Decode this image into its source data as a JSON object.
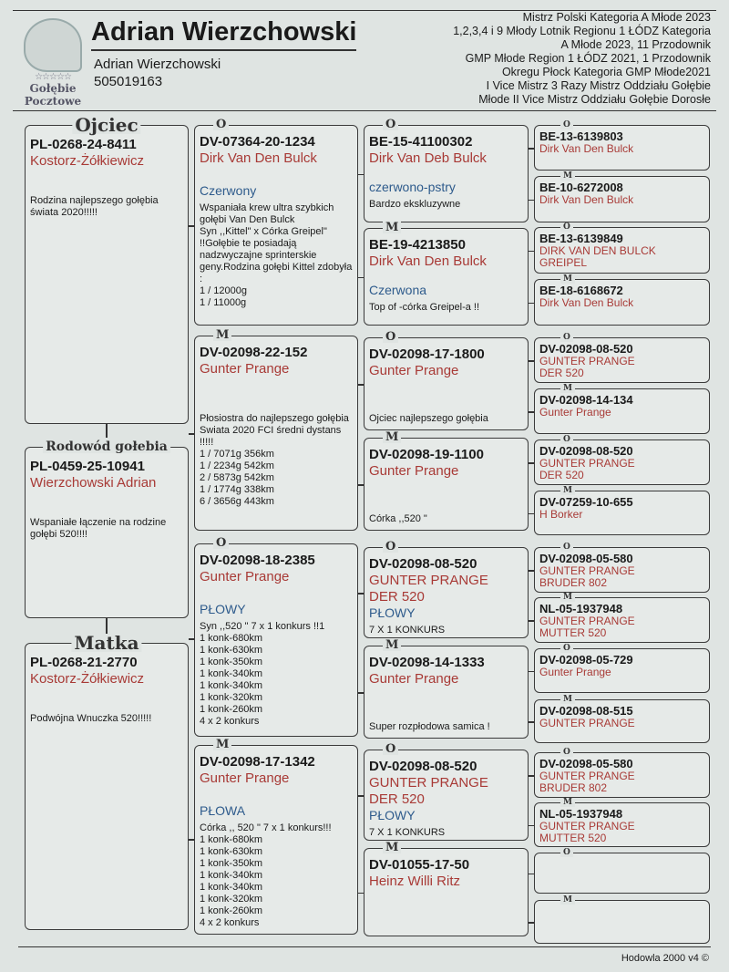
{
  "header": {
    "logo_text": [
      "Gołębie",
      "Pocztowe"
    ],
    "title": "Adrian Wierzchowski",
    "owner_name": "Adrian Wierzchowski",
    "phone": "505019163",
    "achievements": [
      "Mistrz Polski Kategoria A Młode 2023",
      "1,2,3,4 i 9 Młody Lotnik Regionu 1 ŁÓDZ Kategoria",
      "A Młode 2023, 11 Przodownik",
      "GMP Młode Region 1 ŁÓDZ 2021, 1 Przodownik",
      "Okregu Płock Kategoria GMP Młode2021",
      "I Vice Mistrz 3 Razy Mistrz Oddziału Gołębie",
      "Młode II Vice Mistrz Oddziału Gołębie Dorosłe"
    ]
  },
  "generation1": [
    {
      "label": "Ojciec",
      "ring": "PL-0268-24-8411",
      "breeder": "Kostorz-Żółkiewicz",
      "color": "",
      "note": "Rodzina najlepszego gołębia świata 2020!!!!!"
    },
    {
      "label": "Rodowód gołebia",
      "ring": "PL-0459-25-10941",
      "breeder": "Wierzchowski Adrian",
      "color": "",
      "note": "Wspaniałe łączenie na rodzine gołębi 520!!!!"
    },
    {
      "label": "Matka",
      "ring": "PL-0268-21-2770",
      "breeder": "Kostorz-Żółkiewicz",
      "color": "",
      "note": "Podwójna Wnuczka 520!!!!!"
    }
  ],
  "generation2": [
    {
      "label": "O",
      "ring": "DV-07364-20-1234",
      "breeder": "Dirk Van Den Bulck",
      "color": "Czerwony",
      "note": "Wspaniała krew ultra szybkich gołębi Van Den Bulck\nSyn ,,Kittel\" x Córka Greipel\" !!Gołębie te posiadają nadzwyczajne sprinterskie geny.Rodzina gołębi Kittel zdobyła :\n1 / 12000g\n1 / 11000g"
    },
    {
      "label": "M",
      "ring": "DV-02098-22-152",
      "breeder": "Gunter Prange",
      "color": "",
      "note": "Płosiostra do najlepszego gołębia Swiata 2020 FCI średni dystans !!!!!\n1 / 7071g  356km\n1 / 2234g  542km\n2 / 5873g  542km\n1 / 1774g  338km\n6 / 3656g  443km"
    },
    {
      "label": "O",
      "ring": "DV-02098-18-2385",
      "breeder": "Gunter Prange",
      "color": "PŁOWY",
      "note": "Syn ,,520 \" 7 x 1 konkurs !!1\n1 konk-680km\n1 konk-630km\n1 konk-350km\n1 konk-340km\n1 konk-340km\n1 konk-320km\n1 konk-260km\n4 x 2 konkurs"
    },
    {
      "label": "M",
      "ring": "DV-02098-17-1342",
      "breeder": "Gunter Prange",
      "color": "PŁOWA",
      "note": "Córka ,, 520 \" 7 x 1 konkurs!!!\n1 konk-680km\n1 konk-630km\n1 konk-350km\n1 konk-340km\n1 konk-340km\n1 konk-320km\n1 konk-260km\n4 x 2 konkurs"
    }
  ],
  "generation3": [
    {
      "label": "O",
      "ring": "BE-15-41100302",
      "breeder": "Dirk Van Deb Bulck",
      "extra": "",
      "color": "czerwono-pstry",
      "note": "Bardzo ekskluzywne"
    },
    {
      "label": "M",
      "ring": "BE-19-4213850",
      "breeder": "Dirk Van Den Bulck",
      "extra": "",
      "color": "Czerwona",
      "note": "Top of -córka Greipel-a !!"
    },
    {
      "label": "O",
      "ring": "DV-02098-17-1800",
      "breeder": "Gunter Prange",
      "extra": "",
      "color": "",
      "note": "Ojciec najlepszego gołębia"
    },
    {
      "label": "M",
      "ring": "DV-02098-19-1100",
      "breeder": "Gunter Prange",
      "extra": "",
      "color": "",
      "note": "Córka ,,520 \""
    },
    {
      "label": "O",
      "ring": "DV-02098-08-520",
      "breeder": "GUNTER PRANGE",
      "extra": "DER 520",
      "color": "PŁOWY",
      "note": "7 X 1 KONKURS"
    },
    {
      "label": "M",
      "ring": "DV-02098-14-1333",
      "breeder": "Gunter Prange",
      "extra": "",
      "color": "",
      "note": "Super rozpłodowa samica !"
    },
    {
      "label": "O",
      "ring": "DV-02098-08-520",
      "breeder": "GUNTER PRANGE",
      "extra": "DER 520",
      "color": "PŁOWY",
      "note": "7 X 1 KONKURS"
    },
    {
      "label": "M",
      "ring": "DV-01055-17-50",
      "breeder": "Heinz Willi Ritz",
      "extra": "",
      "color": "",
      "note": ""
    }
  ],
  "generation4": [
    {
      "label": "O",
      "ring": "BE-13-6139803",
      "breeder": "Dirk Van Den Bulck",
      "extra": ""
    },
    {
      "label": "M",
      "ring": "BE-10-6272008",
      "breeder": "Dirk Van Den Bulck",
      "extra": ""
    },
    {
      "label": "O",
      "ring": "BE-13-6139849",
      "breeder": "DIRK VAN DEN BULCK",
      "extra": "GREIPEL"
    },
    {
      "label": "M",
      "ring": "BE-18-6168672",
      "breeder": "Dirk Van Den Bulck",
      "extra": ""
    },
    {
      "label": "O",
      "ring": "DV-02098-08-520",
      "breeder": "GUNTER PRANGE",
      "extra": "DER 520"
    },
    {
      "label": "M",
      "ring": "DV-02098-14-134",
      "breeder": "Gunter Prange",
      "extra": ""
    },
    {
      "label": "O",
      "ring": "DV-02098-08-520",
      "breeder": "GUNTER PRANGE",
      "extra": "DER 520"
    },
    {
      "label": "M",
      "ring": "DV-07259-10-655",
      "breeder": "H Borker",
      "extra": ""
    },
    {
      "label": "O",
      "ring": "DV-02098-05-580",
      "breeder": "GUNTER PRANGE",
      "extra": "BRUDER 802"
    },
    {
      "label": "M",
      "ring": "NL-05-1937948",
      "breeder": "GUNTER PRANGE",
      "extra": "MUTTER 520"
    },
    {
      "label": "O",
      "ring": "DV-02098-05-729",
      "breeder": "Gunter Prange",
      "extra": ""
    },
    {
      "label": "M",
      "ring": "DV-02098-08-515",
      "breeder": "GUNTER PRANGE",
      "extra": ""
    },
    {
      "label": "O",
      "ring": "DV-02098-05-580",
      "breeder": "GUNTER PRANGE",
      "extra": "BRUDER 802"
    },
    {
      "label": "M",
      "ring": "NL-05-1937948",
      "breeder": "GUNTER PRANGE",
      "extra": "MUTTER 520"
    },
    {
      "label": "O",
      "ring": "",
      "breeder": "",
      "extra": ""
    },
    {
      "label": "M",
      "ring": "",
      "breeder": "",
      "extra": ""
    }
  ],
  "footer": "Hodowla 2000 v4 ©"
}
